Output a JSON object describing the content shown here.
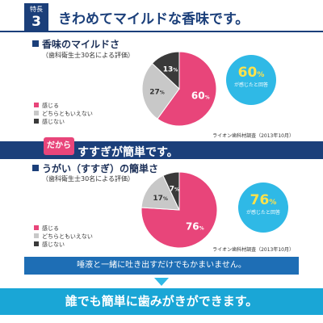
{
  "header": {
    "badge_small": "特長",
    "badge_number": "3",
    "title": "きわめてマイルドな香味です。"
  },
  "colors": {
    "navy": "#1b3f7a",
    "pink": "#e8457a",
    "gray": "#c8c8c8",
    "dark": "#3a3a3a",
    "cyan": "#2fb9e6"
  },
  "band": {
    "dakara": "だから",
    "title": "すすぎが簡単です。"
  },
  "note": "唾液と一緒に吐き出すだけでもかまいません。",
  "bottom": "誰でも簡単に歯みがきができます。",
  "chart_data": [
    {
      "type": "pie",
      "title": "香味のマイルドさ",
      "subtitle": "（歯科衛生士30名による評価）",
      "categories": [
        "感じる",
        "どちらともいえない",
        "感じない"
      ],
      "values": [
        60,
        27,
        13
      ],
      "value_suffix": "%",
      "colors": [
        "#e8457a",
        "#c8c8c8",
        "#3a3a3a"
      ],
      "callout_value": "60",
      "callout_suffix": "%",
      "callout_text": "が感じたと回答",
      "source": "ライオン歯科材調査（2013年10月）"
    },
    {
      "type": "pie",
      "title": "うがい（すすぎ）の簡単さ",
      "subtitle": "（歯科衛生士30名による評価）",
      "categories": [
        "感じる",
        "どちらともいえない",
        "感じない"
      ],
      "values": [
        76,
        17,
        7
      ],
      "value_suffix": "%",
      "colors": [
        "#e8457a",
        "#c8c8c8",
        "#3a3a3a"
      ],
      "callout_value": "76",
      "callout_suffix": "%",
      "callout_text": "が感じたと回答",
      "source": "ライオン歯科材調査（2013年10月）"
    }
  ]
}
